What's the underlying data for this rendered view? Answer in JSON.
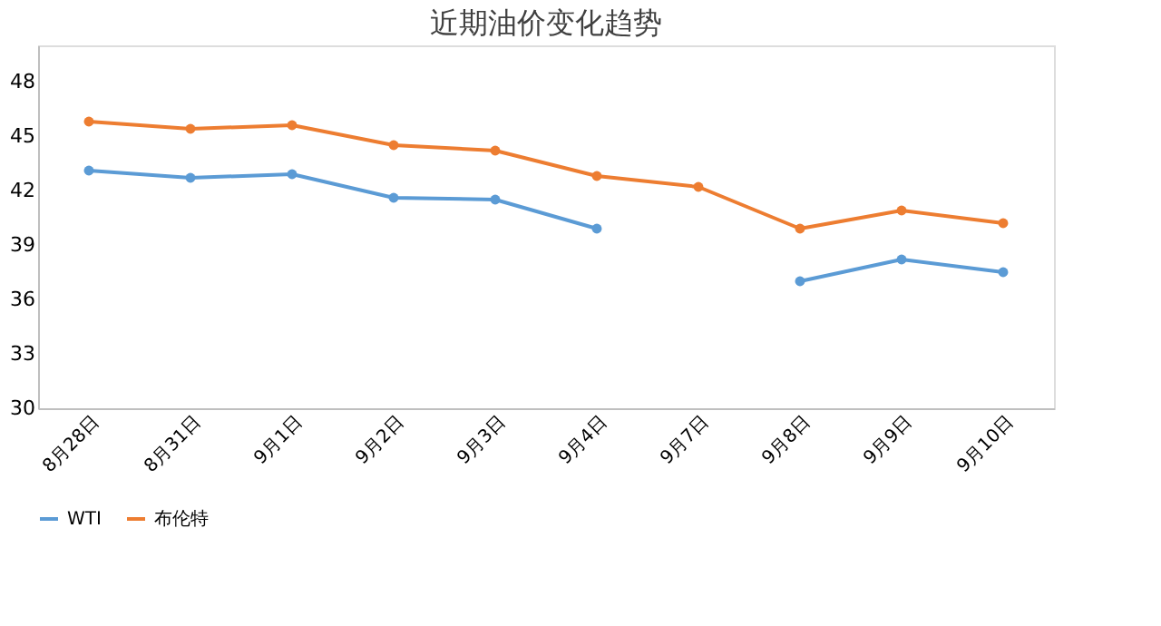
{
  "chart_data": {
    "type": "line",
    "title": "近期油价变化趋势",
    "categories": [
      "8月28日",
      "8月31日",
      "9月1日",
      "9月2日",
      "9月3日",
      "9月4日",
      "9月7日",
      "9月8日",
      "9月9日",
      "9月10日"
    ],
    "series": [
      {
        "name": "WTI",
        "color": "#5b9bd5",
        "values": [
          43.1,
          42.7,
          42.9,
          41.6,
          41.5,
          39.9,
          null,
          37.0,
          38.2,
          37.5
        ]
      },
      {
        "name": "布伦特",
        "color": "#ed7d31",
        "values": [
          45.8,
          45.4,
          45.6,
          44.5,
          44.2,
          42.8,
          42.2,
          39.9,
          40.9,
          40.2
        ]
      }
    ],
    "ylim": [
      30,
      50
    ],
    "yticks": [
      30,
      33,
      36,
      39,
      42,
      45,
      48
    ],
    "grid": false,
    "legend": "bottom",
    "marker": "circle",
    "line_style": "solid"
  }
}
